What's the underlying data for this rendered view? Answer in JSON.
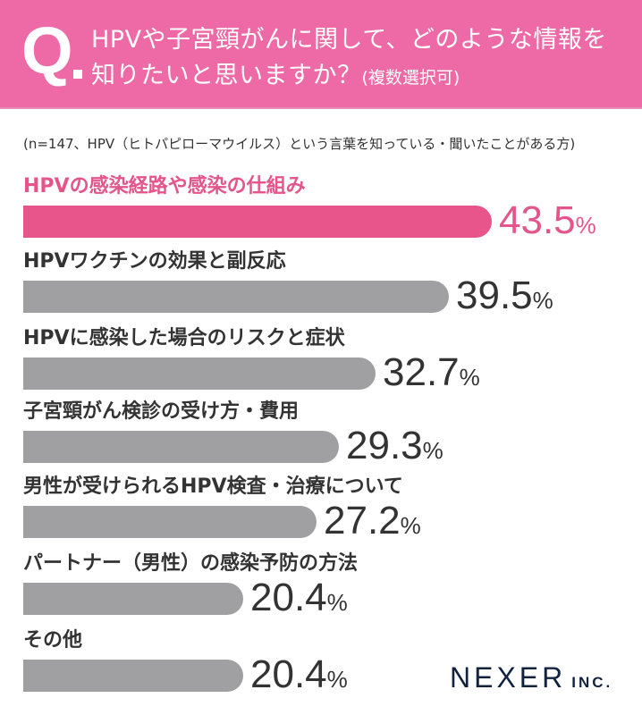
{
  "header": {
    "q_mark": "Q",
    "question_line1": "HPVや子宮頸がんに関して、どのような情報を",
    "question_line2": "知りたいと思いますか？",
    "question_note": "(複数選択可)",
    "background_color": "#EE6AA7"
  },
  "note": "(n=147、HPV（ヒトパピローマウイルス）という言葉を知っている・聞いたことがある方)",
  "logo": {
    "name": "NEXER",
    "suffix": "INC."
  },
  "colors": {
    "highlight": "#E8558A",
    "bar": "#A0A0A2",
    "text": "#333333",
    "logo": "#12233F"
  },
  "chart_data": {
    "type": "bar",
    "orientation": "horizontal",
    "title": "HPVや子宮頸がんに関して、どのような情報を知りたいと思いますか？(複数選択可)",
    "subtitle": "(n=147、HPV（ヒトパピローマウイルス）という言葉を知っている・聞いたことがある方)",
    "categories": [
      "HPVの感染経路や感染の仕組み",
      "HPVワクチンの効果と副反応",
      "HPVに感染した場合のリスクと症状",
      "子宮頸がん検診の受け方・費用",
      "男性が受けられるHPV検査・治療について",
      "パートナー（男性）の感染予防の方法",
      "その他"
    ],
    "values": [
      43.5,
      39.5,
      32.7,
      29.3,
      27.2,
      20.4,
      20.4
    ],
    "unit": "%",
    "highlight_index": 0,
    "xlabel": "",
    "ylabel": "",
    "grid": false,
    "legend": null
  },
  "rows": [
    {
      "label": "HPVの感染経路や感染の仕組み",
      "value": "43.5",
      "pct": "%"
    },
    {
      "label": "HPVワクチンの効果と副反応",
      "value": "39.5",
      "pct": "%"
    },
    {
      "label": "HPVに感染した場合のリスクと症状",
      "value": "32.7",
      "pct": "%"
    },
    {
      "label": "子宮頸がん検診の受け方・費用",
      "value": "29.3",
      "pct": "%"
    },
    {
      "label": "男性が受けられるHPV検査・治療について",
      "value": "27.2",
      "pct": "%"
    },
    {
      "label": "パートナー（男性）の感染予防の方法",
      "value": "20.4",
      "pct": "%"
    },
    {
      "label": "その他",
      "value": "20.4",
      "pct": "%"
    }
  ]
}
